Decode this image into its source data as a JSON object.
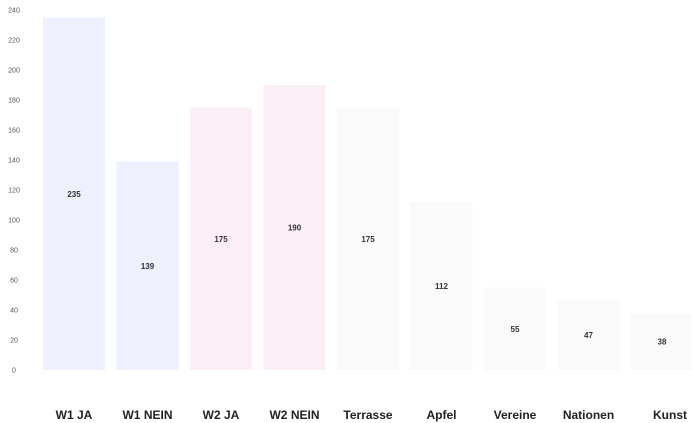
{
  "chart_data": {
    "type": "bar",
    "title": "",
    "xlabel": "",
    "ylabel": "",
    "categories": [
      "W1 JA",
      "W1 NEIN",
      "W2 JA",
      "W2 NEIN",
      "Terrasse",
      "Apfel",
      "Vereine",
      "Nationen",
      "Kunst"
    ],
    "values": [
      235,
      139,
      175,
      190,
      175,
      112,
      55,
      47,
      38
    ],
    "data_labels": [
      "235",
      "139",
      "175",
      "190",
      "175",
      "112",
      "55",
      "47",
      "38"
    ],
    "bar_colors": [
      "#eef1fd",
      "#eef1fd",
      "#fbeef6",
      "#fbeef6",
      "#fafafa",
      "#fafafa",
      "#fafafa",
      "#fafafa",
      "#fafafa"
    ],
    "ylim": [
      0,
      240
    ],
    "yticks": [
      0,
      20,
      40,
      60,
      80,
      100,
      120,
      140,
      160,
      180,
      200,
      220,
      240
    ],
    "ytick_labels": [
      "0",
      "20",
      "40",
      "60",
      "80",
      "100",
      "120",
      "140",
      "160",
      "180",
      "200",
      "220",
      "240"
    ],
    "grid": false,
    "legend": "none"
  }
}
